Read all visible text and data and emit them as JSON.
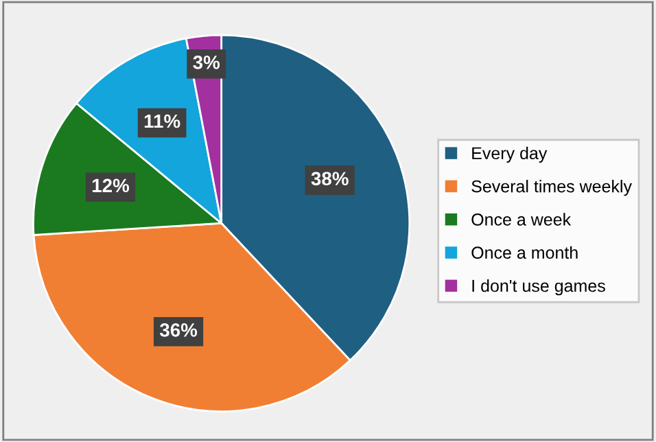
{
  "chart_data": {
    "type": "pie",
    "categories": [
      "Every day",
      "Several times weekly",
      "Once a week",
      "Once a month",
      "I don't use games"
    ],
    "values": [
      38,
      36,
      12,
      11,
      3
    ],
    "colors": [
      "#1f5f82",
      "#f07f34",
      "#1b7a1f",
      "#14a5dc",
      "#a3309f"
    ],
    "value_labels": [
      "38%",
      "36%",
      "12%",
      "11%",
      "3%"
    ],
    "legend": "right"
  }
}
